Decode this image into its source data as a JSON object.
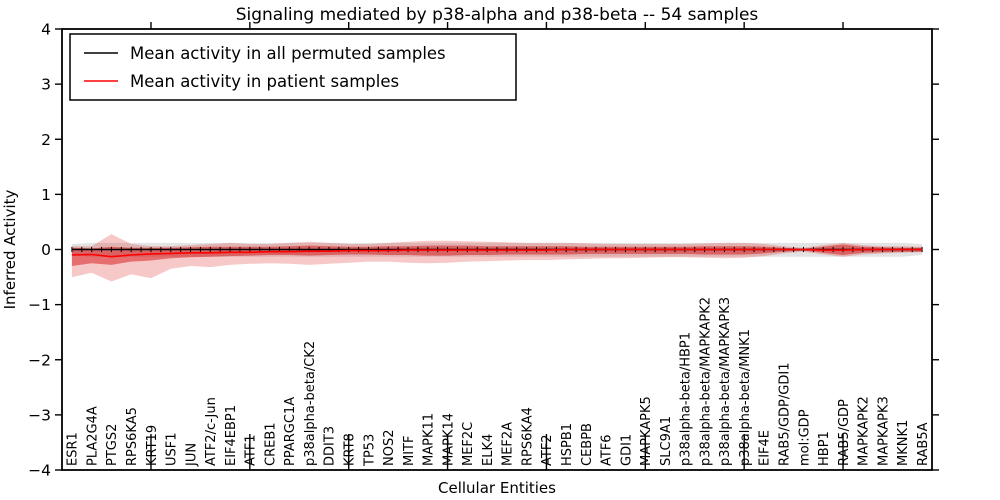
{
  "chart_data": {
    "type": "line",
    "title": "Signaling mediated by p38-alpha and p38-beta -- 54 samples",
    "xlabel": "Cellular Entities",
    "ylabel": "Inferred Activity",
    "ylim": [
      -4,
      4
    ],
    "yticks": [
      -4,
      -3,
      -2,
      -1,
      0,
      1,
      2,
      3,
      4
    ],
    "grid": false,
    "legend_position": "upper left",
    "x_major_tick_indices": [
      4,
      9,
      14,
      19,
      24,
      29,
      34,
      39
    ],
    "categories": [
      "ESR1",
      "PLA2G4A",
      "PTGS2",
      "RPS6KA5",
      "KRT19",
      "USF1",
      "JUN",
      "ATF2/c-Jun",
      "EIF4EBP1",
      "ATF1",
      "CREB1",
      "PPARGC1A",
      "p38alpha-beta/CK2",
      "DDIT3",
      "KRT8",
      "TP53",
      "NOS2",
      "MITF",
      "MAPK11",
      "MAPK14",
      "MEF2C",
      "ELK4",
      "MEF2A",
      "RPS6KA4",
      "ATF2",
      "HSPB1",
      "CEBPB",
      "ATF6",
      "GDI1",
      "MAPKAPK5",
      "SLC9A1",
      "p38alpha-beta/HBP1",
      "p38alpha-beta/MAPKAPK2",
      "p38alpha-beta/MAPKAPK3",
      "p38alpha-beta/MNK1",
      "EIF4E",
      "RAB5/GDP/GDI1",
      "mol:GDP",
      "HBP1",
      "RAB5/GDP",
      "MAPKAPK2",
      "MAPKAPK3",
      "MKNK1",
      "RAB5A"
    ],
    "series": [
      {
        "name": "Mean activity in all permuted samples",
        "color": "#000000",
        "values": [
          0,
          0,
          0,
          0,
          0,
          0,
          0,
          0,
          0,
          0,
          0,
          0,
          0,
          0,
          0,
          0,
          0,
          0,
          0,
          0,
          0,
          0,
          0,
          0,
          0,
          0,
          0,
          0,
          0,
          0,
          0,
          0,
          0,
          0,
          0,
          0,
          0,
          0,
          0,
          0,
          0,
          0,
          0,
          0
        ]
      },
      {
        "name": "Mean activity in patient samples",
        "color": "#ff0000",
        "values": [
          -0.1,
          -0.09,
          -0.13,
          -0.1,
          -0.08,
          -0.07,
          -0.06,
          -0.06,
          -0.05,
          -0.05,
          -0.04,
          -0.04,
          -0.03,
          -0.03,
          -0.02,
          -0.02,
          -0.02,
          -0.01,
          -0.01,
          -0.01,
          -0.01,
          -0.01,
          -0.01,
          -0.01,
          -0.01,
          0,
          0,
          0,
          0,
          0,
          0,
          0,
          0,
          0,
          0,
          0,
          0,
          0,
          -0.01,
          -0.01,
          0,
          0,
          0,
          0
        ]
      }
    ],
    "bands": [
      {
        "name": "permuted-samples-range",
        "color": "rgba(0,0,0,0.11)",
        "upper": [
          0.1,
          0.12,
          0.12,
          0.12,
          0.12,
          0.12,
          0.12,
          0.12,
          0.12,
          0.12,
          0.12,
          0.12,
          0.12,
          0.12,
          0.12,
          0.12,
          0.12,
          0.12,
          0.12,
          0.12,
          0.12,
          0.12,
          0.12,
          0.12,
          0.12,
          0.12,
          0.12,
          0.12,
          0.12,
          0.12,
          0.12,
          0.12,
          0.12,
          0.12,
          0.12,
          0.12,
          0.12,
          0.12,
          0.12,
          0.12,
          0.12,
          0.12,
          0.12,
          0.1
        ],
        "lower": [
          -0.1,
          -0.13,
          -0.13,
          -0.13,
          -0.13,
          -0.13,
          -0.13,
          -0.13,
          -0.13,
          -0.13,
          -0.13,
          -0.13,
          -0.13,
          -0.13,
          -0.13,
          -0.13,
          -0.13,
          -0.13,
          -0.13,
          -0.13,
          -0.13,
          -0.13,
          -0.13,
          -0.13,
          -0.13,
          -0.13,
          -0.13,
          -0.13,
          -0.13,
          -0.13,
          -0.13,
          -0.13,
          -0.13,
          -0.13,
          -0.13,
          -0.13,
          -0.13,
          -0.13,
          -0.13,
          -0.13,
          -0.13,
          -0.13,
          -0.13,
          -0.1
        ]
      },
      {
        "name": "patient-samples-outer-range",
        "color": "rgba(218,5,5,0.22)",
        "upper": [
          0.06,
          0.06,
          0.28,
          0.1,
          0.06,
          0.06,
          0.08,
          0.1,
          0.12,
          0.1,
          0.1,
          0.12,
          0.14,
          0.12,
          0.1,
          0.1,
          0.12,
          0.14,
          0.16,
          0.16,
          0.15,
          0.14,
          0.13,
          0.12,
          0.12,
          0.12,
          0.11,
          0.1,
          0.1,
          0.1,
          0.1,
          0.1,
          0.11,
          0.12,
          0.12,
          0.1,
          0.06,
          0.03,
          0.08,
          0.12,
          0.08,
          0.06,
          0.06,
          0.05
        ],
        "lower": [
          -0.5,
          -0.42,
          -0.58,
          -0.45,
          -0.52,
          -0.35,
          -0.3,
          -0.32,
          -0.28,
          -0.26,
          -0.25,
          -0.26,
          -0.28,
          -0.26,
          -0.24,
          -0.22,
          -0.22,
          -0.24,
          -0.25,
          -0.24,
          -0.22,
          -0.21,
          -0.2,
          -0.19,
          -0.19,
          -0.18,
          -0.17,
          -0.16,
          -0.16,
          -0.15,
          -0.14,
          -0.14,
          -0.15,
          -0.16,
          -0.15,
          -0.12,
          -0.07,
          -0.04,
          -0.09,
          -0.13,
          -0.09,
          -0.07,
          -0.06,
          -0.05
        ]
      },
      {
        "name": "patient-samples-inner-range",
        "color": "rgba(210,0,0,0.45)",
        "upper": [
          0.03,
          0.02,
          0.05,
          0.03,
          0.03,
          0.03,
          0.04,
          0.05,
          0.05,
          0.05,
          0.05,
          0.06,
          0.07,
          0.06,
          0.05,
          0.05,
          0.06,
          0.06,
          0.07,
          0.07,
          0.07,
          0.06,
          0.06,
          0.06,
          0.06,
          0.06,
          0.05,
          0.05,
          0.05,
          0.05,
          0.05,
          0.05,
          0.06,
          0.06,
          0.06,
          0.05,
          0.03,
          0.015,
          0.05,
          0.09,
          0.05,
          0.04,
          0.03,
          0.03
        ],
        "lower": [
          -0.3,
          -0.25,
          -0.28,
          -0.22,
          -0.2,
          -0.16,
          -0.14,
          -0.13,
          -0.12,
          -0.11,
          -0.1,
          -0.1,
          -0.11,
          -0.1,
          -0.09,
          -0.09,
          -0.1,
          -0.1,
          -0.11,
          -0.11,
          -0.1,
          -0.1,
          -0.09,
          -0.09,
          -0.09,
          -0.09,
          -0.08,
          -0.08,
          -0.08,
          -0.08,
          -0.08,
          -0.08,
          -0.09,
          -0.09,
          -0.09,
          -0.07,
          -0.04,
          -0.02,
          -0.06,
          -0.1,
          -0.06,
          -0.05,
          -0.04,
          -0.04
        ]
      }
    ]
  }
}
